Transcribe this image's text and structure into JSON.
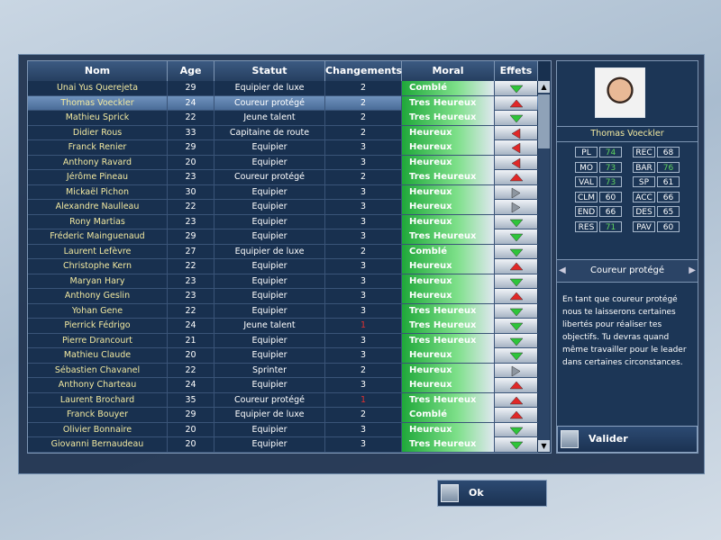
{
  "table": {
    "columns": [
      "Nom",
      "Age",
      "Statut",
      "Changements",
      "Moral",
      "Effets"
    ],
    "rows": [
      [
        "Unai Yus Querejeta",
        29,
        "Equipier de luxe",
        2,
        "Comblé"
      ],
      [
        "Thomas Voeckler",
        24,
        "Coureur protégé",
        2,
        "Tres Heureux"
      ],
      [
        "Mathieu Sprick",
        22,
        "Jeune talent",
        2,
        "Tres Heureux"
      ],
      [
        "Didier Rous",
        33,
        "Capitaine de route",
        2,
        "Heureux"
      ],
      [
        "Franck Renier",
        29,
        "Equipier",
        3,
        "Heureux"
      ],
      [
        "Anthony Ravard",
        20,
        "Equipier",
        3,
        "Heureux"
      ],
      [
        "Jérôme Pineau",
        23,
        "Coureur protégé",
        2,
        "Tres Heureux"
      ],
      [
        "Mickaël Pichon",
        30,
        "Equipier",
        3,
        "Heureux"
      ],
      [
        "Alexandre Naulleau",
        22,
        "Equipier",
        3,
        "Heureux"
      ],
      [
        "Rony Martias",
        23,
        "Equipier",
        3,
        "Heureux"
      ],
      [
        "Fréderic Mainguenaud",
        29,
        "Equipier",
        3,
        "Tres Heureux"
      ],
      [
        "Laurent Lefèvre",
        27,
        "Equipier de luxe",
        2,
        "Comblé"
      ],
      [
        "Christophe Kern",
        22,
        "Equipier",
        3,
        "Heureux"
      ],
      [
        "Maryan Hary",
        23,
        "Equipier",
        3,
        "Heureux"
      ],
      [
        "Anthony Geslin",
        23,
        "Equipier",
        3,
        "Heureux"
      ],
      [
        "Yohan Gene",
        22,
        "Equipier",
        3,
        "Tres Heureux"
      ],
      [
        "Pierrick Fédrigo",
        24,
        "Jeune talent",
        1,
        "Tres Heureux"
      ],
      [
        "Pierre Drancourt",
        21,
        "Equipier",
        3,
        "Tres Heureux"
      ],
      [
        "Mathieu Claude",
        20,
        "Equipier",
        3,
        "Heureux"
      ],
      [
        "Sébastien Chavanel",
        22,
        "Sprinter",
        2,
        "Heureux"
      ],
      [
        "Anthony Charteau",
        24,
        "Equipier",
        3,
        "Heureux"
      ],
      [
        "Laurent Brochard",
        35,
        "Coureur protégé",
        1,
        "Tres Heureux"
      ],
      [
        "Franck Bouyer",
        29,
        "Equipier de luxe",
        2,
        "Comblé"
      ],
      [
        "Olivier Bonnaire",
        20,
        "Equipier",
        3,
        "Heureux"
      ],
      [
        "Giovanni Bernaudeau",
        20,
        "Equipier",
        3,
        "Tres Heureux"
      ]
    ]
  },
  "profile": {
    "name": "Thomas Voeckler",
    "stats": [
      {
        "label": "PL",
        "value": 74
      },
      {
        "label": "REC",
        "value": 68
      },
      {
        "label": "MO",
        "value": 73
      },
      {
        "label": "BAR",
        "value": 76
      },
      {
        "label": "VAL",
        "value": 73
      },
      {
        "label": "SP",
        "value": 61
      },
      {
        "label": "CLM",
        "value": 60
      },
      {
        "label": "ACC",
        "value": 66
      },
      {
        "label": "END",
        "value": 66
      },
      {
        "label": "DES",
        "value": 65
      },
      {
        "label": "RES",
        "value": 71
      },
      {
        "label": "PAV",
        "value": 60
      }
    ]
  },
  "role": {
    "label": "Coureur protégé",
    "description": "En tant que coureur protégé nous te laisserons certaines libertés pour réaliser tes objectifs. Tu devras quand même travailler pour le leader dans certaines circonstances."
  },
  "buttons": {
    "validate": "Valider",
    "ok": "Ok"
  }
}
